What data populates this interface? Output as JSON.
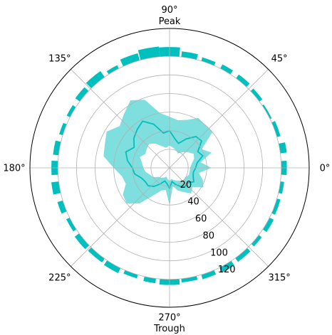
{
  "chart_data": {
    "type": "polar",
    "title": "",
    "theta_unit": "degrees",
    "r_range": [
      0,
      150
    ],
    "r_ticks": [
      20,
      40,
      60,
      80,
      100,
      120
    ],
    "r_tick_labels": [
      "20",
      "40",
      "60",
      "80",
      "100",
      "120"
    ],
    "theta_ticks": [
      0,
      45,
      90,
      135,
      180,
      225,
      270,
      315
    ],
    "theta_tick_labels": [
      "0°",
      "45°",
      "90°\nPeak",
      "135°",
      "180°",
      "225°",
      "270°\nTrough",
      "315°"
    ],
    "grid": true,
    "color": "#00BFBF",
    "bars": {
      "description": "Radial bars starting at r=120; value = outer radius",
      "theta": [
        0,
        10,
        20,
        30,
        40,
        50,
        60,
        70,
        80,
        90,
        100,
        110,
        120,
        130,
        140,
        150,
        160,
        170,
        180,
        190,
        200,
        210,
        220,
        230,
        240,
        250,
        260,
        270,
        280,
        290,
        300,
        310,
        320,
        330,
        340,
        350
      ],
      "outer_radius": [
        126,
        127,
        124,
        122,
        124,
        125,
        125,
        124,
        126,
        130,
        131,
        128,
        124,
        128,
        126,
        124,
        124,
        126,
        127,
        128,
        126,
        124,
        126,
        125,
        126,
        124,
        125,
        126,
        124,
        125,
        126,
        125,
        124,
        125,
        124,
        124
      ],
      "width_deg": [
        7,
        5,
        8,
        8,
        7,
        7,
        6,
        7,
        8,
        10,
        10,
        9,
        6,
        9,
        7,
        6,
        6,
        7,
        7,
        6,
        6,
        7,
        8,
        9,
        8,
        7,
        6,
        10,
        8,
        7,
        7,
        8,
        6,
        7,
        8,
        6
      ]
    },
    "band_series": {
      "theta": [
        0,
        10,
        20,
        30,
        40,
        50,
        60,
        70,
        80,
        90,
        100,
        110,
        120,
        130,
        140,
        150,
        160,
        170,
        180,
        190,
        200,
        210,
        220,
        230,
        240,
        250,
        260,
        270,
        280,
        290,
        300,
        310,
        320,
        330,
        340,
        350
      ],
      "lower": [
        22,
        24,
        28,
        30,
        26,
        22,
        18,
        20,
        22,
        24,
        22,
        25,
        30,
        34,
        32,
        30,
        34,
        30,
        28,
        26,
        22,
        20,
        15,
        14,
        12,
        10,
        12,
        14,
        12,
        14,
        16,
        18,
        20,
        20,
        22,
        22
      ],
      "upper": [
        45,
        34,
        48,
        40,
        60,
        60,
        62,
        55,
        52,
        55,
        60,
        78,
        84,
        76,
        70,
        78,
        74,
        72,
        60,
        52,
        50,
        58,
        60,
        50,
        34,
        26,
        24,
        40,
        20,
        26,
        30,
        36,
        32,
        42,
        38,
        32
      ],
      "mid": [
        28,
        30,
        38,
        35,
        45,
        44,
        36,
        28,
        32,
        40,
        38,
        50,
        58,
        54,
        50,
        44,
        50,
        46,
        40,
        38,
        32,
        30,
        30,
        26,
        20,
        15,
        17,
        22,
        15,
        19,
        23,
        26,
        25,
        30,
        27,
        26
      ]
    }
  }
}
